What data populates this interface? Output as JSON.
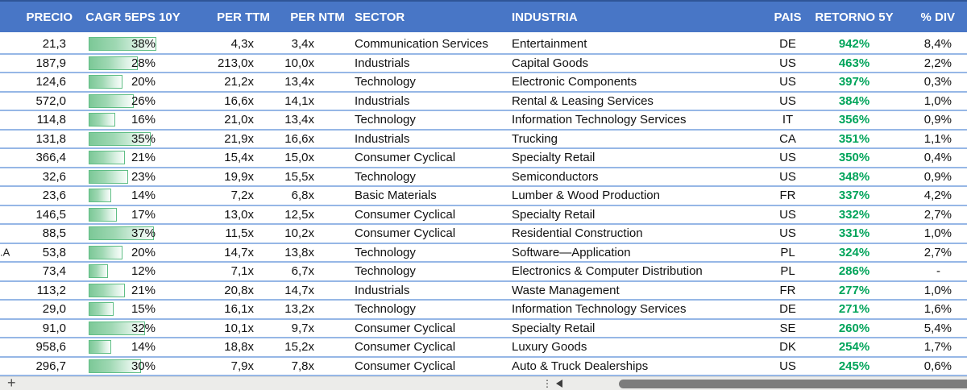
{
  "table": {
    "columns": [
      {
        "key": "precio",
        "label": "PRECIO"
      },
      {
        "key": "cagr",
        "label": "CAGR 5EPS 10Y"
      },
      {
        "key": "ttm",
        "label": "PER TTM"
      },
      {
        "key": "ntm",
        "label": "PER NTM"
      },
      {
        "key": "sector",
        "label": "SECTOR"
      },
      {
        "key": "industria",
        "label": "INDUSTRIA"
      },
      {
        "key": "pais",
        "label": "PAIS"
      },
      {
        "key": "retorno",
        "label": "RETORNO 5Y"
      },
      {
        "key": "div",
        "label": "% DIV"
      }
    ],
    "cagr_bar_max": 38,
    "rows": [
      {
        "precio": "21,3",
        "cagr": 38,
        "per_ttm": "4,3x",
        "per_ntm": "3,4x",
        "sector": "Communication Services",
        "industria": "Entertainment",
        "pais": "DE",
        "retorno": "942%",
        "div": "8,4%"
      },
      {
        "precio": "187,9",
        "cagr": 28,
        "per_ttm": "213,0x",
        "per_ntm": "10,0x",
        "sector": "Industrials",
        "industria": "Capital Goods",
        "pais": "US",
        "retorno": "463%",
        "div": "2,2%"
      },
      {
        "precio": "124,6",
        "cagr": 20,
        "per_ttm": "21,2x",
        "per_ntm": "13,4x",
        "sector": "Technology",
        "industria": "Electronic Components",
        "pais": "US",
        "retorno": "397%",
        "div": "0,3%"
      },
      {
        "precio": "572,0",
        "cagr": 26,
        "per_ttm": "16,6x",
        "per_ntm": "14,1x",
        "sector": "Industrials",
        "industria": "Rental & Leasing Services",
        "pais": "US",
        "retorno": "384%",
        "div": "1,0%"
      },
      {
        "precio": "114,8",
        "cagr": 16,
        "per_ttm": "21,0x",
        "per_ntm": "13,4x",
        "sector": "Technology",
        "industria": "Information Technology Services",
        "pais": "IT",
        "retorno": "356%",
        "div": "0,9%"
      },
      {
        "precio": "131,8",
        "cagr": 35,
        "per_ttm": "21,9x",
        "per_ntm": "16,6x",
        "sector": "Industrials",
        "industria": "Trucking",
        "pais": "CA",
        "retorno": "351%",
        "div": "1,1%"
      },
      {
        "precio": "366,4",
        "cagr": 21,
        "per_ttm": "15,4x",
        "per_ntm": "15,0x",
        "sector": "Consumer Cyclical",
        "industria": "Specialty Retail",
        "pais": "US",
        "retorno": "350%",
        "div": "0,4%"
      },
      {
        "precio": "32,6",
        "cagr": 23,
        "per_ttm": "19,9x",
        "per_ntm": "15,5x",
        "sector": "Technology",
        "industria": "Semiconductors",
        "pais": "US",
        "retorno": "348%",
        "div": "0,9%"
      },
      {
        "precio": "23,6",
        "cagr": 14,
        "per_ttm": "7,2x",
        "per_ntm": "6,8x",
        "sector": "Basic Materials",
        "industria": "Lumber & Wood Production",
        "pais": "FR",
        "retorno": "337%",
        "div": "4,2%"
      },
      {
        "precio": "146,5",
        "cagr": 17,
        "per_ttm": "13,0x",
        "per_ntm": "12,5x",
        "sector": "Consumer Cyclical",
        "industria": "Specialty Retail",
        "pais": "US",
        "retorno": "332%",
        "div": "2,7%"
      },
      {
        "precio": "88,5",
        "cagr": 37,
        "per_ttm": "11,5x",
        "per_ntm": "10,2x",
        "sector": "Consumer Cyclical",
        "industria": "Residential Construction",
        "pais": "US",
        "retorno": "331%",
        "div": "1,0%"
      },
      {
        "precio": "53,8",
        "cagr": 20,
        "per_ttm": "14,7x",
        "per_ntm": "13,8x",
        "sector": "Technology",
        "industria": "Software—Application",
        "pais": "PL",
        "retorno": "324%",
        "div": "2,7%",
        "edge_text": ".A"
      },
      {
        "precio": "73,4",
        "cagr": 12,
        "per_ttm": "7,1x",
        "per_ntm": "6,7x",
        "sector": "Technology",
        "industria": "Electronics & Computer Distribution",
        "pais": "PL",
        "retorno": "286%",
        "div": "-"
      },
      {
        "precio": "113,2",
        "cagr": 21,
        "per_ttm": "20,8x",
        "per_ntm": "14,7x",
        "sector": "Industrials",
        "industria": "Waste Management",
        "pais": "FR",
        "retorno": "277%",
        "div": "1,0%"
      },
      {
        "precio": "29,0",
        "cagr": 15,
        "per_ttm": "16,1x",
        "per_ntm": "13,2x",
        "sector": "Technology",
        "industria": "Information Technology Services",
        "pais": "DE",
        "retorno": "271%",
        "div": "1,6%"
      },
      {
        "precio": "91,0",
        "cagr": 32,
        "per_ttm": "10,1x",
        "per_ntm": "9,7x",
        "sector": "Consumer Cyclical",
        "industria": "Specialty Retail",
        "pais": "SE",
        "retorno": "260%",
        "div": "5,4%"
      },
      {
        "precio": "958,6",
        "cagr": 14,
        "per_ttm": "18,8x",
        "per_ntm": "15,2x",
        "sector": "Consumer Cyclical",
        "industria": "Luxury Goods",
        "pais": "DK",
        "retorno": "254%",
        "div": "1,7%"
      },
      {
        "precio": "296,7",
        "cagr": 30,
        "per_ttm": "7,9x",
        "per_ntm": "7,8x",
        "sector": "Consumer Cyclical",
        "industria": "Auto & Truck Dealerships",
        "pais": "US",
        "retorno": "245%",
        "div": "0,6%"
      }
    ]
  },
  "footer": {
    "add_sheet_glyph": "+",
    "more_tabs_glyph": "⋮",
    "scroll_left_icon": "left-triangle"
  },
  "colors": {
    "header_bg": "#4876C6",
    "header_top_edge": "#2F5597",
    "header_text": "#FFFFFF",
    "row_border": "#96B7E6",
    "bar_fill": "#7CC897",
    "bar_border": "#5FBE85",
    "positive_green": "#00A45A",
    "footer_bg": "#ECECEA",
    "scrollbar_thumb": "#7C7C7C"
  }
}
